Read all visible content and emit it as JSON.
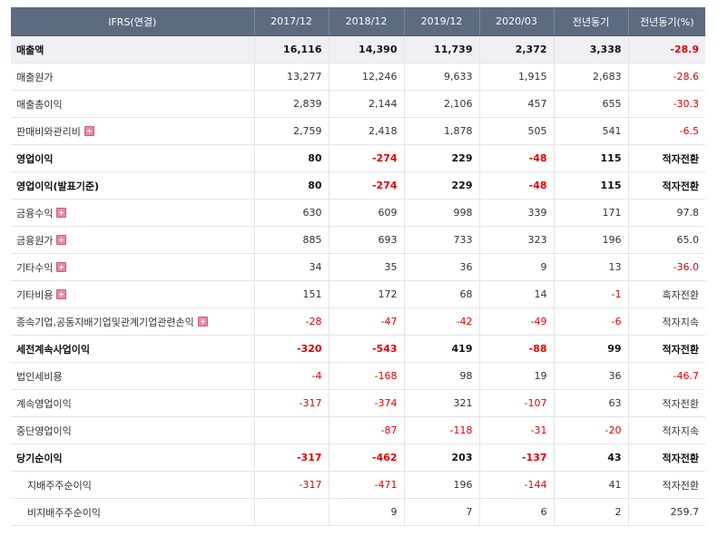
{
  "header": {
    "item_col": "IFRS(연결)",
    "cols": [
      "2017/12",
      "2018/12",
      "2019/12",
      "2020/03",
      "전년동기",
      "전년동기(%)"
    ]
  },
  "rows": [
    {
      "label": "매출액",
      "values": [
        "16,116",
        "14,390",
        "11,739",
        "2,372",
        "3,338",
        "-28.9"
      ],
      "bold": true,
      "shade": true,
      "expand": false,
      "sub": false
    },
    {
      "label": "매출원가",
      "values": [
        "13,277",
        "12,246",
        "9,633",
        "1,915",
        "2,683",
        "-28.6"
      ],
      "bold": false,
      "shade": false,
      "expand": false,
      "sub": false
    },
    {
      "label": "매출총이익",
      "values": [
        "2,839",
        "2,144",
        "2,106",
        "457",
        "655",
        "-30.3"
      ],
      "bold": false,
      "shade": false,
      "expand": false,
      "sub": false
    },
    {
      "label": "판매비와관리비",
      "values": [
        "2,759",
        "2,418",
        "1,878",
        "505",
        "541",
        "-6.5"
      ],
      "bold": false,
      "shade": false,
      "expand": true,
      "sub": false
    },
    {
      "label": "영업이익",
      "values": [
        "80",
        "-274",
        "229",
        "-48",
        "115",
        "적자전환"
      ],
      "bold": true,
      "shade": false,
      "expand": false,
      "sub": false
    },
    {
      "label": "영업이익(발표기준)",
      "values": [
        "80",
        "-274",
        "229",
        "-48",
        "115",
        "적자전환"
      ],
      "bold": true,
      "shade": false,
      "expand": false,
      "sub": false
    },
    {
      "label": "금융수익",
      "values": [
        "630",
        "609",
        "998",
        "339",
        "171",
        "97.8"
      ],
      "bold": false,
      "shade": false,
      "expand": true,
      "sub": false
    },
    {
      "label": "금융원가",
      "values": [
        "885",
        "693",
        "733",
        "323",
        "196",
        "65.0"
      ],
      "bold": false,
      "shade": false,
      "expand": true,
      "sub": false
    },
    {
      "label": "기타수익",
      "values": [
        "34",
        "35",
        "36",
        "9",
        "13",
        "-36.0"
      ],
      "bold": false,
      "shade": false,
      "expand": true,
      "sub": false
    },
    {
      "label": "기타비용",
      "values": [
        "151",
        "172",
        "68",
        "14",
        "-1",
        "흑자전환"
      ],
      "bold": false,
      "shade": false,
      "expand": true,
      "sub": false
    },
    {
      "label": "종속기업,공동지배기업및관계기업관련손익",
      "values": [
        "-28",
        "-47",
        "-42",
        "-49",
        "-6",
        "적자지속"
      ],
      "bold": false,
      "shade": false,
      "expand": true,
      "sub": false
    },
    {
      "label": "세전계속사업이익",
      "values": [
        "-320",
        "-543",
        "419",
        "-88",
        "99",
        "적자전환"
      ],
      "bold": true,
      "shade": false,
      "expand": false,
      "sub": false
    },
    {
      "label": "법인세비용",
      "values": [
        "-4",
        "-168",
        "98",
        "19",
        "36",
        "-46.7"
      ],
      "bold": false,
      "shade": false,
      "expand": false,
      "sub": false
    },
    {
      "label": "계속영업이익",
      "values": [
        "-317",
        "-374",
        "321",
        "-107",
        "63",
        "적자전환"
      ],
      "bold": false,
      "shade": false,
      "expand": false,
      "sub": false
    },
    {
      "label": "중단영업이익",
      "values": [
        "",
        "-87",
        "-118",
        "-31",
        "-20",
        "적자지속"
      ],
      "bold": false,
      "shade": false,
      "expand": false,
      "sub": false
    },
    {
      "label": "당기순이익",
      "values": [
        "-317",
        "-462",
        "203",
        "-137",
        "43",
        "적자전환"
      ],
      "bold": true,
      "shade": false,
      "expand": false,
      "sub": false
    },
    {
      "label": "지배주주순이익",
      "values": [
        "-317",
        "-471",
        "196",
        "-144",
        "41",
        "적자전환"
      ],
      "bold": false,
      "shade": false,
      "expand": false,
      "sub": true
    },
    {
      "label": "비지배주주순이익",
      "values": [
        "",
        "9",
        "7",
        "6",
        "2",
        "259.7"
      ],
      "bold": false,
      "shade": false,
      "expand": false,
      "sub": true
    }
  ]
}
